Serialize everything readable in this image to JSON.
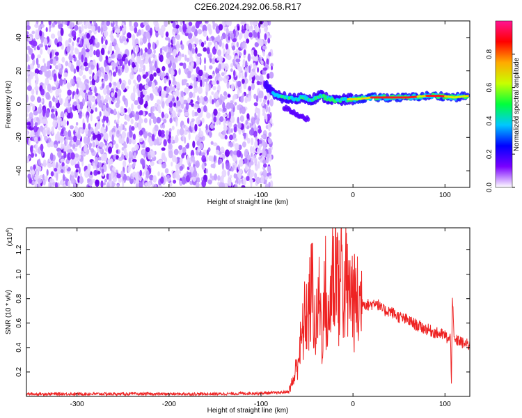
{
  "chart_data": [
    {
      "type": "heatmap",
      "title": "C2E6.2024.292.06.58.R17",
      "xlabel": "Height of straight line (km)",
      "ylabel": "Frequency (Hz)",
      "xlim": [
        -355,
        127
      ],
      "ylim": [
        -50,
        50
      ],
      "x_ticks": [
        -300,
        -200,
        -100,
        0,
        100
      ],
      "y_ticks": [
        -40,
        -20,
        0,
        20,
        40
      ],
      "x_tick_labels": [
        "-300",
        "-200",
        "-100",
        "0",
        "100"
      ],
      "y_tick_labels": [
        "-40",
        "-20",
        "0",
        "20",
        "40"
      ],
      "noise_region_x": [
        -355,
        -88
      ],
      "signal_trace": [
        {
          "x": -95,
          "y": 12
        },
        {
          "x": -90,
          "y": 9
        },
        {
          "x": -85,
          "y": 5
        },
        {
          "x": -75,
          "y": 4
        },
        {
          "x": -65,
          "y": 3
        },
        {
          "x": -55,
          "y": 4
        },
        {
          "x": -45,
          "y": 3
        },
        {
          "x": -35,
          "y": 5
        },
        {
          "x": -25,
          "y": 3
        },
        {
          "x": -15,
          "y": 2
        },
        {
          "x": -5,
          "y": 3
        },
        {
          "x": 5,
          "y": 3
        },
        {
          "x": 20,
          "y": 4
        },
        {
          "x": 40,
          "y": 4
        },
        {
          "x": 60,
          "y": 4
        },
        {
          "x": 80,
          "y": 5
        },
        {
          "x": 95,
          "y": 5
        },
        {
          "x": 110,
          "y": 4
        },
        {
          "x": 125,
          "y": 5
        }
      ],
      "colorbar": {
        "label": "Normalized spectral amplitude",
        "range": [
          0,
          1
        ],
        "ticks": [
          0.0,
          0.2,
          0.4,
          0.6,
          0.8
        ],
        "tick_labels": [
          "0.0",
          "0.2",
          "0.4",
          "0.6",
          "0.8"
        ],
        "colors": [
          "#ffffff",
          "#7a00ff",
          "#0000ff",
          "#00c8ff",
          "#00ff3c",
          "#c8ff00",
          "#ffaa00",
          "#ff0000",
          "#ff1493"
        ]
      },
      "grid": false
    },
    {
      "type": "line",
      "xlabel": "Height of straight line (km)",
      "ylabel": "SNR (10 * v/v)",
      "y_scale_label": "(x10",
      "y_scale_exp": "4",
      "y_scale_close": ")",
      "xlim": [
        -355,
        127
      ],
      "ylim": [
        0,
        1.38
      ],
      "x_ticks": [
        -300,
        -200,
        -100,
        0,
        100
      ],
      "y_ticks": [
        0.2,
        0.4,
        0.6,
        0.8,
        1.0,
        1.2
      ],
      "x_tick_labels": [
        "-300",
        "-200",
        "-100",
        "0",
        "100"
      ],
      "y_tick_labels": [
        "0.2",
        "0.4",
        "0.6",
        "0.8",
        "1.0",
        "1.2"
      ],
      "color": "#ee2222",
      "series": [
        {
          "x": [
            -355,
            -300,
            -250,
            -200,
            -150,
            -110,
            -80,
            -70,
            -64,
            -60,
            -56,
            -52,
            -48,
            -44,
            -42,
            -40,
            -38,
            -36,
            -34,
            -32,
            -30,
            -28,
            -26,
            -24,
            -22,
            -20,
            -18,
            -16,
            -14,
            -12,
            -10,
            -8,
            -6,
            -4,
            -2,
            0,
            2,
            4,
            6,
            8,
            10,
            15,
            20,
            25,
            30,
            35,
            40,
            50,
            60,
            70,
            80,
            90,
            100,
            104,
            106,
            107,
            108,
            110,
            115,
            120,
            127
          ],
          "y": [
            0.02,
            0.02,
            0.02,
            0.02,
            0.02,
            0.025,
            0.03,
            0.04,
            0.15,
            0.3,
            0.45,
            0.65,
            0.7,
            0.93,
            0.6,
            0.55,
            0.7,
            0.85,
            0.5,
            0.65,
            0.9,
            0.55,
            0.6,
            0.9,
            1.05,
            0.85,
            1.38,
            0.8,
            0.9,
            1.2,
            0.75,
            0.95,
            0.85,
            0.8,
            0.9,
            0.8,
            0.75,
            0.8,
            0.7,
            0.8,
            0.78,
            0.75,
            0.75,
            0.78,
            0.72,
            0.7,
            0.7,
            0.65,
            0.62,
            0.58,
            0.55,
            0.52,
            0.5,
            0.46,
            0.48,
            0.12,
            0.82,
            0.45,
            0.46,
            0.43,
            0.42
          ]
        }
      ],
      "grid": false
    }
  ]
}
